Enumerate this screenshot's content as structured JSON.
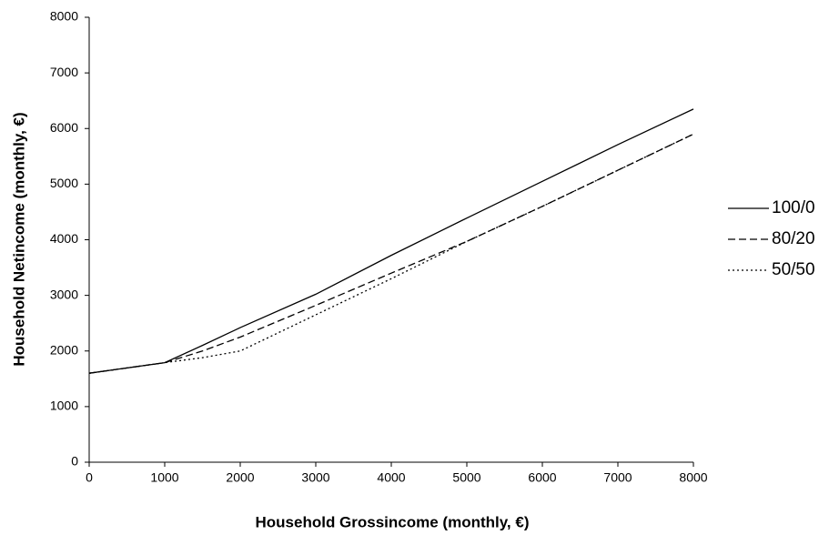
{
  "chart_data": {
    "type": "line",
    "x_label": "Household Grossincome (monthly, €)",
    "y_label": "Household Netincome (monthly, €)",
    "x": [
      0,
      1000,
      1500,
      2000,
      3000,
      4000,
      5000,
      6000,
      7000,
      8000
    ],
    "series": [
      {
        "name": "100/0",
        "color": "#000000",
        "dash": "solid",
        "values": [
          1600,
          1790,
          2100,
          2420,
          3020,
          3720,
          4390,
          5050,
          5710,
          6350
        ]
      },
      {
        "name": "80/20",
        "color": "#000000",
        "dash": "dashed",
        "values": [
          1600,
          1790,
          2000,
          2250,
          2820,
          3400,
          3970,
          4600,
          5250,
          5900
        ]
      },
      {
        "name": "50/50",
        "color": "#000000",
        "dash": "dotted",
        "values": [
          1600,
          1790,
          1880,
          2000,
          2650,
          3300,
          3970,
          4600,
          5250,
          5900
        ]
      }
    ],
    "xlim": [
      0,
      8000
    ],
    "xticks": [
      0,
      1000,
      2000,
      3000,
      4000,
      5000,
      6000,
      7000,
      8000
    ],
    "ylim": [
      0,
      8000
    ],
    "yticks": [
      0,
      1000,
      2000,
      3000,
      4000,
      5000,
      6000,
      7000,
      8000
    ],
    "grid": false,
    "legend": "right"
  }
}
